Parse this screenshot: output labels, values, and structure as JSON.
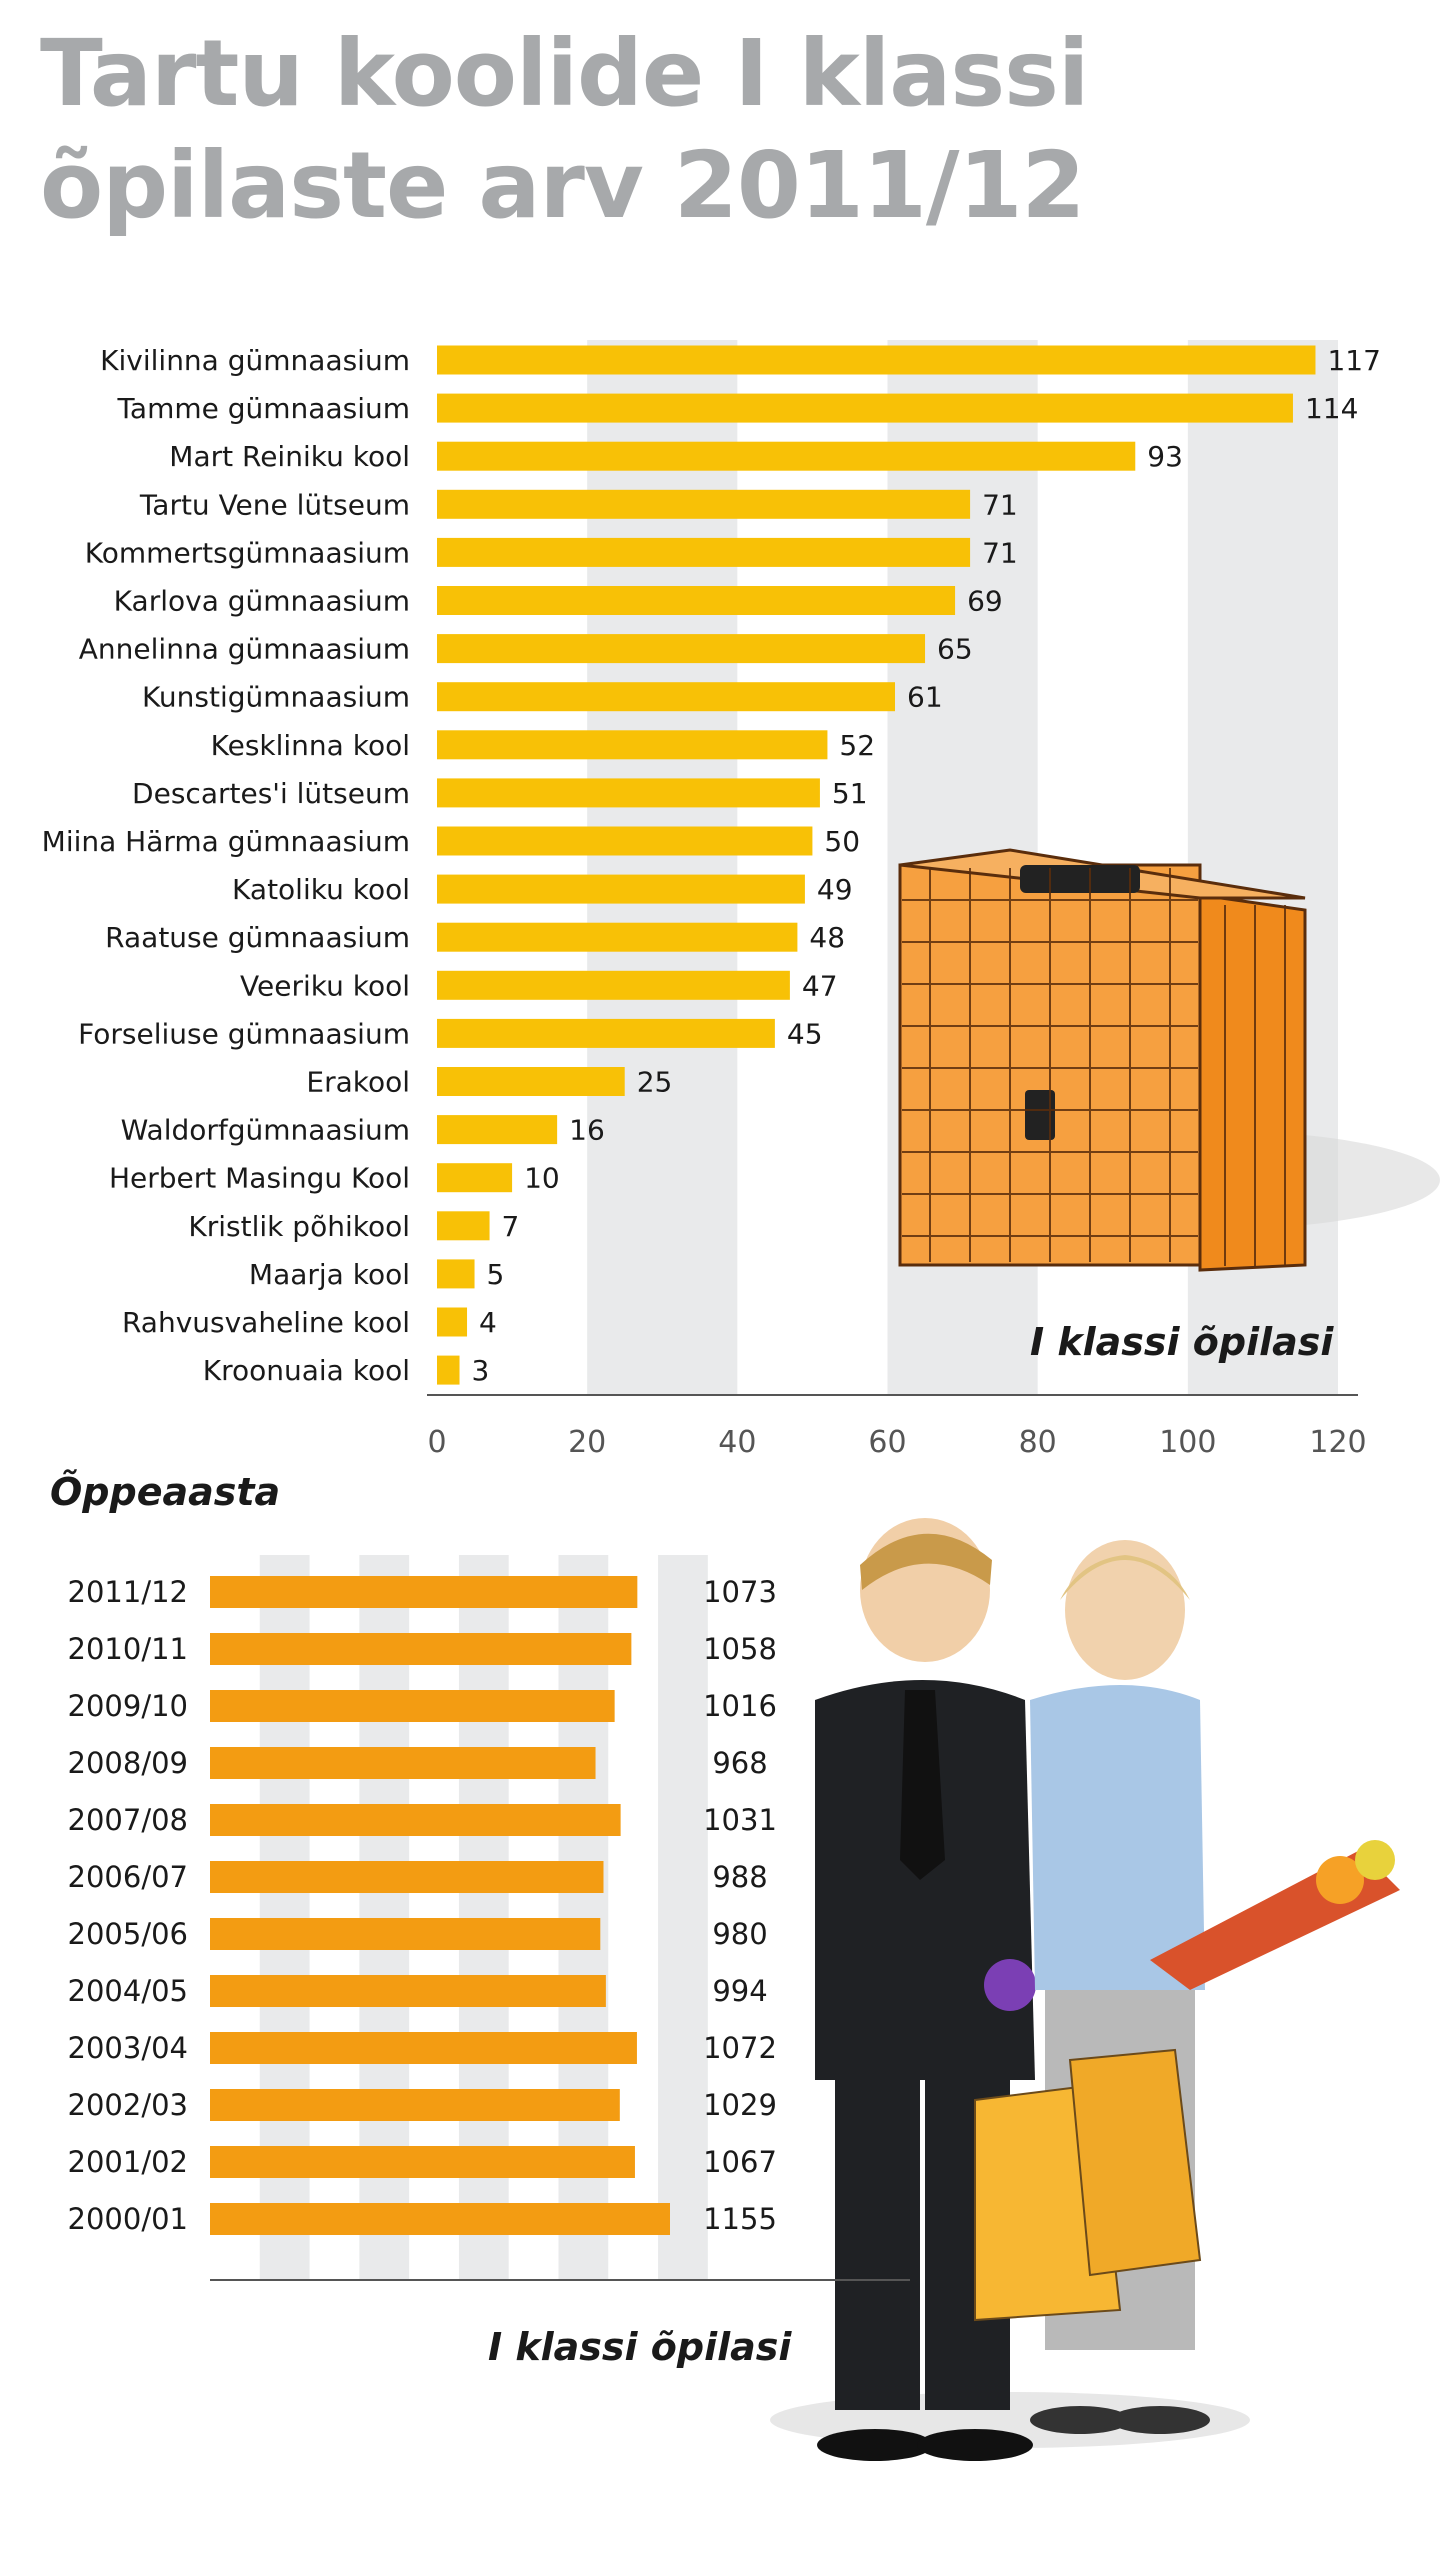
{
  "title_line1": "Tartu koolide I klassi",
  "title_line2": "õpilaste arv 2011/12",
  "colors": {
    "bar1": "#f8c106",
    "bar2": "#f39c12",
    "band": "#e9eaeb",
    "title": "#a7a9ab",
    "text": "#1a1a1a",
    "axis": "#555555",
    "case_orange": "#f39320",
    "case_line": "#5a2d0c"
  },
  "chart_data": [
    {
      "type": "bar",
      "orientation": "horizontal",
      "categories": [
        "Kivilinna gümnaasium",
        "Tamme gümnaasium",
        "Mart Reiniku kool",
        "Tartu Vene lütseum",
        "Kommertsgümnaasium",
        "Karlova gümnaasium",
        "Annelinna gümnaasium",
        "Kunstigümnaasium",
        "Kesklinna kool",
        "Descartes'i lütseum",
        "Miina Härma gümnaasium",
        "Katoliku kool",
        "Raatuse gümnaasium",
        "Veeriku kool",
        "Forseliuse gümnaasium",
        "Erakool",
        "Waldorfgümnaasium",
        "Herbert Masingu Kool",
        "Kristlik põhikool",
        "Maarja kool",
        "Rahvusvaheline kool",
        "Kroonuaia kool"
      ],
      "values": [
        117,
        114,
        93,
        71,
        71,
        69,
        65,
        61,
        52,
        51,
        50,
        49,
        48,
        47,
        45,
        25,
        16,
        10,
        7,
        5,
        4,
        3
      ],
      "xlim": [
        0,
        120
      ],
      "xticks": [
        0,
        20,
        40,
        60,
        80,
        100,
        120
      ],
      "xlabel": "I klassi õpilasi",
      "grid": "alternating vertical bands"
    },
    {
      "type": "bar",
      "orientation": "horizontal",
      "title": "Õppeaasta",
      "categories": [
        "2011/12",
        "2010/11",
        "2009/10",
        "2008/09",
        "2007/08",
        "2006/07",
        "2005/06",
        "2004/05",
        "2003/04",
        "2002/03",
        "2001/02",
        "2000/01"
      ],
      "values": [
        1073,
        1058,
        1016,
        968,
        1031,
        988,
        980,
        994,
        1072,
        1029,
        1067,
        1155
      ],
      "xlabel": "I klassi õpilasi",
      "grid": "alternating vertical bands"
    }
  ]
}
